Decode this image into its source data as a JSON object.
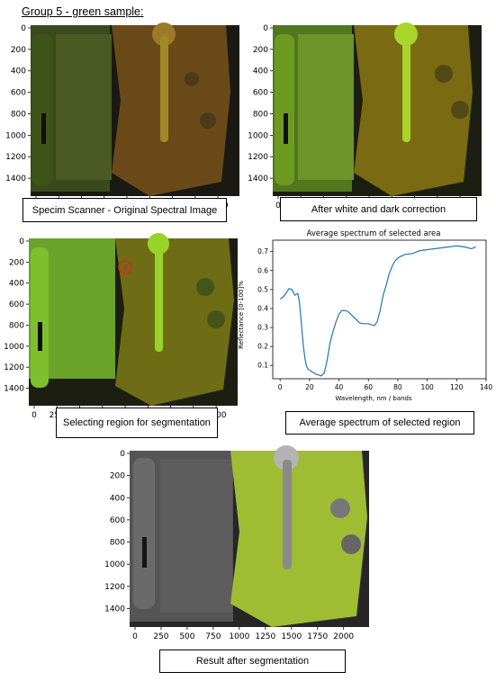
{
  "heading": "Group 5 - green sample:",
  "axes": {
    "y_ticks": [
      "0",
      "200",
      "400",
      "600",
      "800",
      "1000",
      "1200",
      "1400"
    ],
    "x_ticks": [
      "0",
      "250",
      "500",
      "750",
      "1000",
      "1250",
      "1500",
      "1750",
      "2000"
    ]
  },
  "panels": [
    {
      "caption": "Specim Scanner - Original Spectral Image",
      "tint": "#5b7a1e"
    },
    {
      "caption": "After white and dark correction",
      "tint": "#7fb828"
    },
    {
      "caption": "Selecting region for segmentation",
      "tint": "#8fd335"
    },
    {
      "caption": "Average spectrum of selected region"
    },
    {
      "caption": "Result after segmentation",
      "tint": "#b9d83a"
    }
  ],
  "chart_data": {
    "type": "line",
    "title": "Average spectrum of selected area",
    "xlabel": "Wavelength, nm / bands",
    "ylabel": "Reflectance [0-100]%",
    "xlim": [
      -5,
      140
    ],
    "ylim": [
      0.03,
      0.76
    ],
    "x_ticks": [
      0,
      20,
      40,
      60,
      80,
      100,
      120,
      140
    ],
    "y_ticks": [
      0.1,
      0.2,
      0.3,
      0.4,
      0.5,
      0.6,
      0.7
    ],
    "line_color": "#1f77b4",
    "series": [
      {
        "x": [
          0,
          2,
          4,
          6,
          8,
          10,
          12,
          13,
          14,
          15,
          16,
          17,
          18,
          19,
          20,
          22,
          24,
          26,
          28,
          30,
          32,
          34,
          36,
          38,
          40,
          42,
          44,
          46,
          48,
          50,
          52,
          54,
          56,
          58,
          60,
          62,
          64,
          66,
          68,
          70,
          72,
          74,
          76,
          78,
          80,
          82,
          85,
          90,
          95,
          100,
          105,
          110,
          115,
          120,
          125,
          130,
          133
        ],
        "y": [
          0.45,
          0.46,
          0.48,
          0.505,
          0.5,
          0.47,
          0.48,
          0.44,
          0.36,
          0.27,
          0.19,
          0.13,
          0.095,
          0.08,
          0.075,
          0.065,
          0.055,
          0.05,
          0.045,
          0.06,
          0.13,
          0.22,
          0.28,
          0.33,
          0.37,
          0.39,
          0.39,
          0.385,
          0.37,
          0.355,
          0.34,
          0.325,
          0.32,
          0.32,
          0.32,
          0.315,
          0.31,
          0.33,
          0.39,
          0.47,
          0.52,
          0.58,
          0.62,
          0.65,
          0.665,
          0.675,
          0.685,
          0.69,
          0.705,
          0.71,
          0.715,
          0.72,
          0.725,
          0.73,
          0.725,
          0.715,
          0.725
        ]
      }
    ]
  }
}
